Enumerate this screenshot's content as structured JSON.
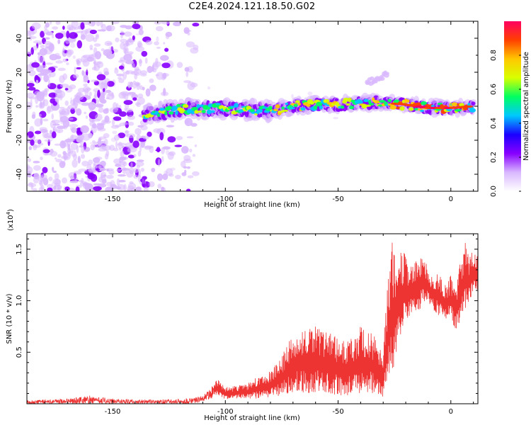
{
  "figure_title": "C2E4.2024.121.18.50.G02",
  "colorbar": {
    "label": "Normalized spectral amplitude",
    "ticks": [
      "0.0",
      "0.2",
      "0.4",
      "0.6",
      "0.8"
    ],
    "tick_values": [
      0.0,
      0.2,
      0.4,
      0.6,
      0.8
    ],
    "range": [
      0,
      1
    ],
    "colormap": "white-violet-blue-cyan-green-yellow-orange-red-magenta",
    "stops": [
      "#ffffff",
      "#d9b8ff",
      "#8800ff",
      "#1a00ff",
      "#00c8ff",
      "#00ff60",
      "#d8ff00",
      "#ffc800",
      "#ff4000",
      "#ff0060"
    ]
  },
  "chart_data": [
    {
      "type": "heatmap",
      "title": "",
      "xlabel": "Height of straight line (km)",
      "ylabel": "Frequency (Hz)",
      "xlim": [
        -188,
        12
      ],
      "ylim": [
        -50,
        50
      ],
      "xticks": [
        -150,
        -100,
        -50,
        0
      ],
      "yticks": [
        -40,
        -20,
        0,
        20,
        40
      ],
      "description_values": {
        "noise_region_x": [
          -188,
          -113
        ],
        "signal_band_x": [
          -136,
          10
        ],
        "signal_center_frequency_hz": [
          [
            -136,
            -5
          ],
          [
            -120,
            -2
          ],
          [
            -100,
            -1
          ],
          [
            -80,
            -3
          ],
          [
            -70,
            0
          ],
          [
            -60,
            1
          ],
          [
            -50,
            1
          ],
          [
            -40,
            2
          ],
          [
            -30,
            2
          ],
          [
            -20,
            1
          ],
          [
            -10,
            -1
          ],
          [
            0,
            -1
          ],
          [
            10,
            0
          ]
        ],
        "signal_halfwidth_hz": 4,
        "side_feature": {
          "x": [
            -37,
            -28
          ],
          "y": [
            14,
            19
          ]
        }
      }
    },
    {
      "type": "line",
      "title": "",
      "xlabel": "Height of straight line (km)",
      "ylabel": "SNR (10 * v/v)",
      "yscale_label": "(x10",
      "yscale_exponent": "4",
      "yscale_suffix": ")",
      "xlim": [
        -188,
        12
      ],
      "ylim": [
        0,
        1.65
      ],
      "xticks": [
        -150,
        -100,
        -50,
        0
      ],
      "yticks": [
        0.5,
        1.0,
        1.5
      ],
      "ytick_labels": [
        "0.5",
        "1.0",
        "1.5"
      ],
      "color": "#ee3333",
      "series": [
        {
          "x": [
            -188,
            -180,
            -170,
            -160,
            -150,
            -140,
            -130,
            -120,
            -115,
            -110,
            -106,
            -104,
            -100,
            -95,
            -90,
            -85,
            -80,
            -75,
            -72,
            -68,
            -64,
            -60,
            -55,
            -50,
            -45,
            -40,
            -35,
            -30,
            -28,
            -26,
            -24,
            -22,
            -20,
            -18,
            -15,
            -12,
            -10,
            -8,
            -6,
            -4,
            -2,
            0,
            2,
            4,
            6,
            8,
            10,
            12
          ],
          "envelope_max": [
            0.04,
            0.05,
            0.06,
            0.1,
            0.06,
            0.05,
            0.05,
            0.06,
            0.07,
            0.1,
            0.2,
            0.25,
            0.16,
            0.18,
            0.2,
            0.28,
            0.32,
            0.45,
            0.62,
            0.7,
            0.72,
            0.75,
            0.7,
            0.65,
            0.62,
            0.75,
            0.7,
            0.55,
            1.15,
            1.6,
            1.4,
            1.5,
            1.45,
            1.35,
            1.4,
            1.45,
            1.35,
            1.25,
            1.3,
            1.2,
            1.15,
            1.25,
            1.1,
            1.35,
            1.6,
            1.45,
            1.5,
            1.45
          ],
          "envelope_min": [
            0.0,
            0.0,
            0.0,
            0.0,
            0.0,
            0.0,
            0.0,
            0.0,
            0.0,
            0.02,
            0.05,
            0.08,
            0.04,
            0.05,
            0.05,
            0.05,
            0.06,
            0.08,
            0.1,
            0.12,
            0.1,
            0.1,
            0.1,
            0.08,
            0.08,
            0.1,
            0.1,
            0.06,
            0.2,
            0.3,
            0.45,
            0.7,
            0.8,
            0.85,
            0.9,
            0.95,
            0.95,
            0.9,
            0.85,
            0.85,
            0.8,
            0.85,
            0.7,
            0.8,
            0.9,
            1.0,
            1.05,
            1.1
          ]
        }
      ]
    }
  ]
}
